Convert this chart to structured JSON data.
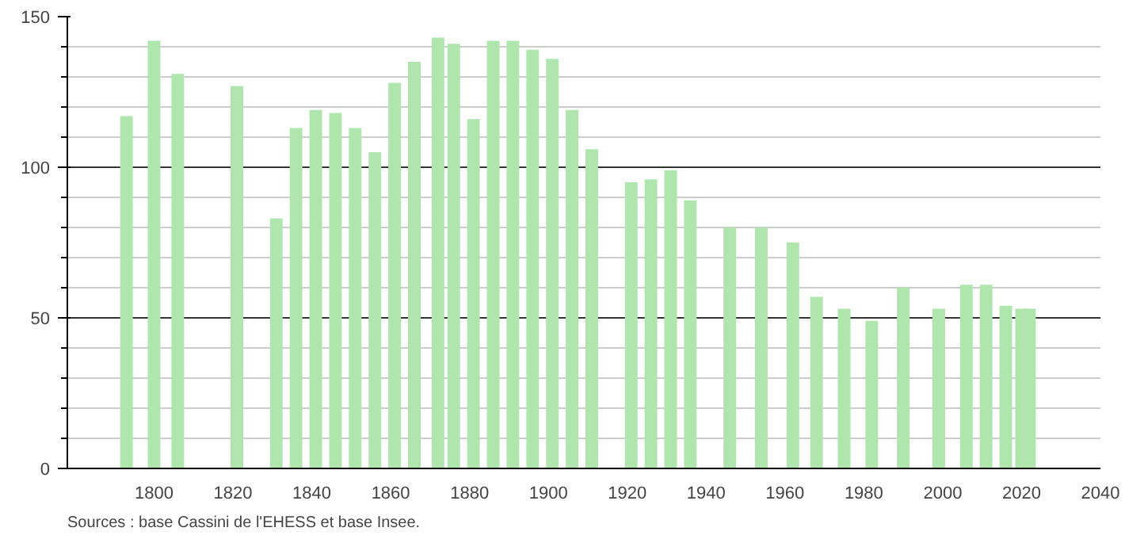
{
  "chart_data": {
    "type": "bar",
    "x": [
      1793,
      1800,
      1806,
      1821,
      1831,
      1836,
      1841,
      1846,
      1851,
      1856,
      1861,
      1866,
      1872,
      1876,
      1881,
      1886,
      1891,
      1896,
      1901,
      1906,
      1911,
      1921,
      1926,
      1931,
      1936,
      1946,
      1954,
      1962,
      1968,
      1975,
      1982,
      1990,
      1999,
      2006,
      2011,
      2016,
      2020,
      2022
    ],
    "values": [
      117,
      142,
      131,
      127,
      83,
      113,
      119,
      118,
      113,
      105,
      128,
      135,
      143,
      141,
      116,
      142,
      142,
      139,
      136,
      119,
      106,
      95,
      96,
      99,
      89,
      80,
      80,
      75,
      57,
      53,
      49,
      60,
      53,
      61,
      61,
      54,
      53,
      53
    ],
    "color": "#aee6ae",
    "xlim": [
      1778,
      2040
    ],
    "xticks": [
      1800,
      1820,
      1840,
      1860,
      1880,
      1900,
      1920,
      1940,
      1960,
      1980,
      2000,
      2020,
      2040
    ],
    "ylim": [
      0,
      150
    ],
    "yticks": [
      0,
      50,
      100,
      150
    ],
    "grid": "y",
    "annotations": [
      "Sources : base Cassini de l'EHESS et base Insee."
    ]
  }
}
